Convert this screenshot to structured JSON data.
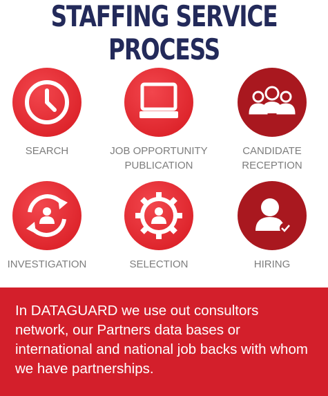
{
  "title": "STAFFING SERVICE PROCESS",
  "steps": [
    {
      "label": "SEARCH",
      "icon": "clock-icon",
      "color": "#e52b33"
    },
    {
      "label": "JOB OPPORTUNITY\nPUBLICATION",
      "icon": "monitor-icon",
      "color": "#e52b33"
    },
    {
      "label": "CANDIDATE\nRECEPTION",
      "icon": "group-icon",
      "color": "#a9181f"
    },
    {
      "label": "INVESTIGATION",
      "icon": "refresh-person-icon",
      "color": "#e52b33"
    },
    {
      "label": "SELECTION",
      "icon": "gear-person-icon",
      "color": "#e52b33"
    },
    {
      "label": "HIRING",
      "icon": "person-check-icon",
      "color": "#a9181f"
    }
  ],
  "banner": {
    "text": "In DATAGUARD we use out consultors network, our Partners data bases or international and national job backs with whom we have partnerships.",
    "color": "#d31f2b"
  }
}
